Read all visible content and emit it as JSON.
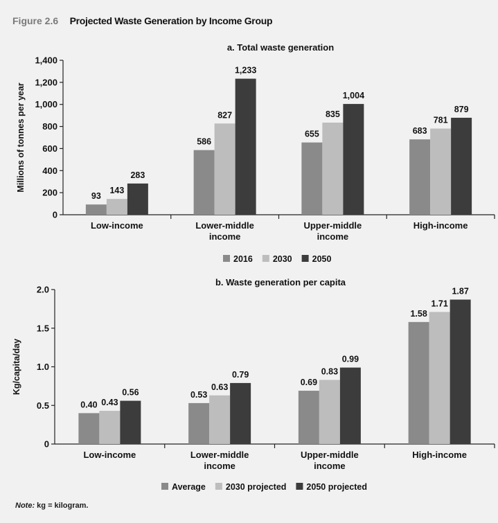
{
  "figure": {
    "label": "Figure 2.6",
    "title": "Projected Waste Generation by Income Group"
  },
  "note": {
    "prefix": "Note:",
    "text": "kg = kilogram."
  },
  "colors": {
    "series1": "#8a8a8a",
    "series2": "#bdbdbd",
    "series3": "#3c3c3c"
  },
  "chart_data": [
    {
      "type": "bar",
      "title": "a. Total waste generation",
      "ylabel": "Millions of tonnes per year",
      "xlabel": "",
      "categories": [
        [
          "Low-income"
        ],
        [
          "Lower-middle",
          "income"
        ],
        [
          "Upper-middle",
          "income"
        ],
        [
          "High-income"
        ]
      ],
      "ylim": [
        0,
        1400
      ],
      "yticks": [
        "0",
        "200",
        "400",
        "600",
        "800",
        "1,000",
        "1,200",
        "1,400"
      ],
      "ytick_values": [
        0,
        200,
        400,
        600,
        800,
        1000,
        1200,
        1400
      ],
      "legend_position": "bottom",
      "series": [
        {
          "name": "2016",
          "values": [
            93,
            586,
            655,
            683
          ],
          "labels": [
            "93",
            "586",
            "655",
            "683"
          ]
        },
        {
          "name": "2030",
          "values": [
            143,
            827,
            835,
            781
          ],
          "labels": [
            "143",
            "827",
            "835",
            "781"
          ]
        },
        {
          "name": "2050",
          "values": [
            283,
            1233,
            1004,
            879
          ],
          "labels": [
            "283",
            "1,233",
            "1,004",
            "879"
          ]
        }
      ]
    },
    {
      "type": "bar",
      "title": "b. Waste generation per capita",
      "ylabel": "Kg/capita/day",
      "xlabel": "",
      "categories": [
        [
          "Low-income"
        ],
        [
          "Lower-middle",
          "income"
        ],
        [
          "Upper-middle",
          "income"
        ],
        [
          "High-income"
        ]
      ],
      "ylim": [
        0,
        2.0
      ],
      "yticks": [
        "0",
        "0.5",
        "1.0",
        "1.5",
        "2.0"
      ],
      "ytick_values": [
        0,
        0.5,
        1.0,
        1.5,
        2.0
      ],
      "legend_position": "bottom",
      "series": [
        {
          "name": "Average",
          "values": [
            0.4,
            0.53,
            0.69,
            1.58
          ],
          "labels": [
            "0.40",
            "0.53",
            "0.69",
            "1.58"
          ]
        },
        {
          "name": "2030 projected",
          "values": [
            0.43,
            0.63,
            0.83,
            1.71
          ],
          "labels": [
            "0.43",
            "0.63",
            "0.83",
            "1.71"
          ]
        },
        {
          "name": "2050 projected",
          "values": [
            0.56,
            0.79,
            0.99,
            1.87
          ],
          "labels": [
            "0.56",
            "0.79",
            "0.99",
            "1.87"
          ]
        }
      ]
    }
  ]
}
